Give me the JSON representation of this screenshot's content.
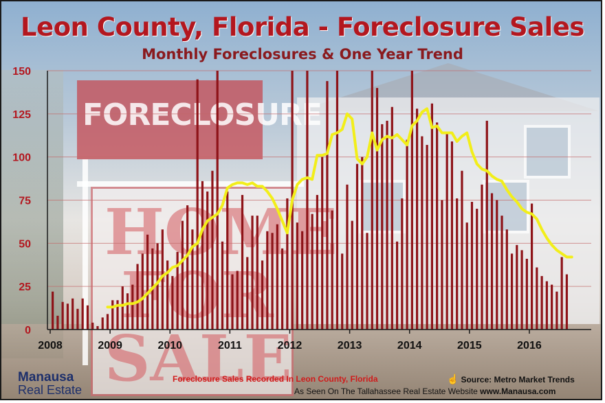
{
  "title": "Leon County, Florida - Foreclosure Sales",
  "subtitle": "Monthly Foreclosures & One Year Trend",
  "background": {
    "sign_top_text": "FORECLOSURE",
    "sign_main_text": "HOME FOR SALE"
  },
  "logo": {
    "line1": "Manausa",
    "line2": "Real Estate"
  },
  "footer": {
    "caption": "Foreclosure Sales Recorded In Leon County, Florida",
    "source": "Source: Metro Market Trends",
    "seen_on": "As Seen On The Tallahassee Real Estate Website",
    "url": "www.Manausa.com"
  },
  "colors": {
    "bar": "#8e1318",
    "trend": "#f2ee1a",
    "title": "#b3171f",
    "ytick": "#b3171f",
    "grid": "#c46a6a"
  },
  "chart_data": {
    "type": "bar",
    "title": "Leon County, Florida - Foreclosure Sales",
    "subtitle": "Monthly Foreclosures & One Year Trend",
    "xlabel": "",
    "ylabel": "",
    "ylim": [
      0,
      150
    ],
    "yticks": [
      0,
      25,
      50,
      75,
      100,
      125,
      150
    ],
    "xticks": [
      "2008",
      "2009",
      "2010",
      "2011",
      "2012",
      "2013",
      "2014",
      "2015",
      "2016"
    ],
    "grid": true,
    "start": "2008-01",
    "series": [
      {
        "name": "",
        "type": "bar",
        "values": [
          22,
          8,
          16,
          15,
          18,
          12,
          18,
          14,
          4,
          2,
          7,
          9,
          17,
          17,
          25,
          21,
          26,
          38,
          44,
          55,
          47,
          50,
          58,
          40,
          31,
          45,
          63,
          72,
          58,
          145,
          86,
          80,
          92,
          150,
          51,
          80,
          32,
          34,
          78,
          42,
          66,
          66,
          40,
          57,
          56,
          61,
          47,
          76,
          150,
          62,
          57,
          150,
          67,
          78,
          100,
          144,
          69,
          150,
          44,
          84,
          63,
          96,
          100,
          56,
          150,
          140,
          119,
          121,
          129,
          51,
          76,
          110,
          150,
          128,
          112,
          107,
          131,
          120,
          75,
          114,
          109,
          76,
          92,
          62,
          74,
          70,
          84,
          121,
          79,
          75,
          66,
          58,
          44,
          49,
          46,
          41,
          73,
          36,
          31,
          28,
          26,
          22,
          42,
          32
        ]
      },
      {
        "name": "",
        "type": "line",
        "start_index": 11,
        "values": [
          13,
          13,
          14,
          14,
          15,
          15,
          16,
          18,
          21,
          24,
          27,
          31,
          33,
          36,
          37,
          40,
          43,
          48,
          50,
          58,
          63,
          65,
          67,
          72,
          82,
          84,
          85,
          85,
          84,
          85,
          83,
          83,
          80,
          76,
          70,
          63,
          56,
          75,
          84,
          87,
          88,
          87,
          101,
          101,
          102,
          113,
          114,
          116,
          125,
          122,
          99,
          96,
          100,
          114,
          104,
          110,
          112,
          111,
          113,
          110,
          107,
          118,
          121,
          126,
          128,
          117,
          118,
          114,
          114,
          114,
          109,
          112,
          114,
          103,
          96,
          93,
          92,
          89,
          87,
          86,
          81,
          77,
          74,
          70,
          68,
          67,
          64,
          58,
          53,
          49,
          46,
          44,
          42,
          42
        ]
      }
    ]
  }
}
